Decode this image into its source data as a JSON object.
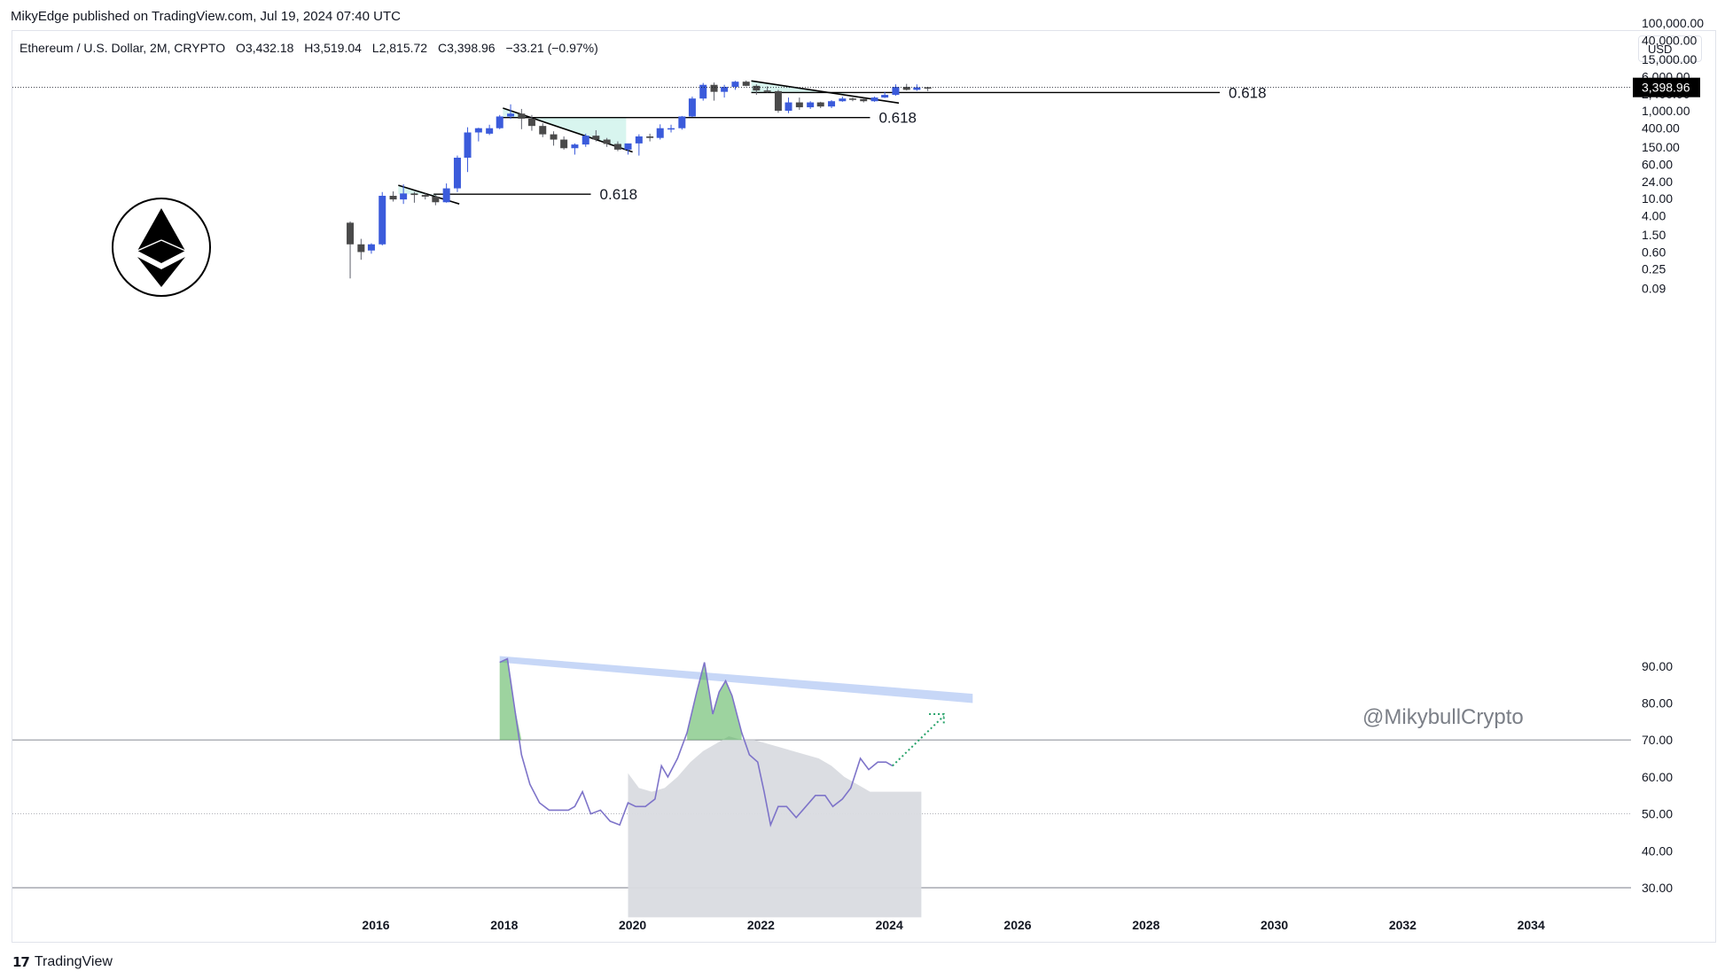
{
  "header": {
    "published": "MikyEdge published on TradingView.com, Jul 19, 2024 07:40 UTC"
  },
  "legend": {
    "symbol": "Ethereum / U.S. Dollar, 2M, CRYPTO",
    "open": "O3,432.18",
    "high": "H3,519.04",
    "low": "L2,815.72",
    "close": "C3,398.96",
    "change": "−33.21 (−0.97%)"
  },
  "currency_button": "USD",
  "footer": {
    "brand": "TradingView",
    "logo_glyph": "17"
  },
  "watermark": "@MikybullCrypto",
  "colors": {
    "up": "#3b5bdb",
    "down": "#4a4a4a",
    "rsi_line": "#7e74c9",
    "trendline": "#000000",
    "resistance_band": "#b9cdf5",
    "ma_area": "#d9dbe0",
    "overbought_fill": "#4caf50",
    "arrow": "#26a269"
  },
  "chart_data": [
    {
      "type": "candlestick",
      "name": "price",
      "scale": "log",
      "y_ticks": [
        "100,000.00",
        "40,000.00",
        "15,000.00",
        "6,000.00",
        "2,400.00",
        "1,000.00",
        "400.00",
        "150.00",
        "60.00",
        "24.00",
        "10.00",
        "4.00",
        "1.50",
        "0.60",
        "0.25",
        "0.09"
      ],
      "last_price_label": "3,398.96",
      "fib_labels": [
        "0.618",
        "0.618",
        "0.618"
      ],
      "candles": [
        {
          "t": 2015.6,
          "o": 2.8,
          "h": 3.0,
          "l": 0.15,
          "c": 0.9
        },
        {
          "t": 2015.77,
          "o": 0.9,
          "h": 1.2,
          "l": 0.4,
          "c": 0.6
        },
        {
          "t": 2015.93,
          "o": 0.65,
          "h": 0.95,
          "l": 0.55,
          "c": 0.9
        },
        {
          "t": 2016.1,
          "o": 0.9,
          "h": 14,
          "l": 0.85,
          "c": 11.5
        },
        {
          "t": 2016.27,
          "o": 11.5,
          "h": 14.5,
          "l": 8.5,
          "c": 9.5
        },
        {
          "t": 2016.43,
          "o": 9.5,
          "h": 21,
          "l": 7.5,
          "c": 13
        },
        {
          "t": 2016.6,
          "o": 13,
          "h": 14,
          "l": 8,
          "c": 12
        },
        {
          "t": 2016.77,
          "o": 12,
          "h": 13,
          "l": 9.5,
          "c": 11
        },
        {
          "t": 2016.93,
          "o": 11,
          "h": 12,
          "l": 7,
          "c": 8.2
        },
        {
          "t": 2017.1,
          "o": 8.2,
          "h": 22,
          "l": 8,
          "c": 17
        },
        {
          "t": 2017.27,
          "o": 17,
          "h": 95,
          "l": 14,
          "c": 85
        },
        {
          "t": 2017.43,
          "o": 85,
          "h": 420,
          "l": 40,
          "c": 320
        },
        {
          "t": 2017.6,
          "o": 320,
          "h": 410,
          "l": 200,
          "c": 400
        },
        {
          "t": 2017.77,
          "o": 300,
          "h": 480,
          "l": 280,
          "c": 400
        },
        {
          "t": 2017.93,
          "o": 400,
          "h": 800,
          "l": 380,
          "c": 740
        },
        {
          "t": 2018.1,
          "o": 740,
          "h": 1400,
          "l": 650,
          "c": 860
        },
        {
          "t": 2018.27,
          "o": 860,
          "h": 1100,
          "l": 380,
          "c": 660
        },
        {
          "t": 2018.43,
          "o": 660,
          "h": 800,
          "l": 350,
          "c": 450
        },
        {
          "t": 2018.6,
          "o": 450,
          "h": 520,
          "l": 250,
          "c": 290
        },
        {
          "t": 2018.77,
          "o": 290,
          "h": 340,
          "l": 160,
          "c": 220
        },
        {
          "t": 2018.93,
          "o": 220,
          "h": 260,
          "l": 130,
          "c": 140
        },
        {
          "t": 2019.1,
          "o": 140,
          "h": 180,
          "l": 100,
          "c": 170
        },
        {
          "t": 2019.27,
          "o": 170,
          "h": 300,
          "l": 150,
          "c": 270
        },
        {
          "t": 2019.43,
          "o": 270,
          "h": 360,
          "l": 200,
          "c": 220
        },
        {
          "t": 2019.6,
          "o": 220,
          "h": 240,
          "l": 150,
          "c": 175
        },
        {
          "t": 2019.77,
          "o": 175,
          "h": 200,
          "l": 120,
          "c": 130
        },
        {
          "t": 2019.93,
          "o": 130,
          "h": 150,
          "l": 100,
          "c": 180
        },
        {
          "t": 2020.1,
          "o": 180,
          "h": 290,
          "l": 95,
          "c": 260
        },
        {
          "t": 2020.27,
          "o": 260,
          "h": 300,
          "l": 200,
          "c": 240
        },
        {
          "t": 2020.43,
          "o": 240,
          "h": 490,
          "l": 220,
          "c": 400
        },
        {
          "t": 2020.6,
          "o": 400,
          "h": 480,
          "l": 320,
          "c": 400
        },
        {
          "t": 2020.77,
          "o": 400,
          "h": 760,
          "l": 370,
          "c": 740
        },
        {
          "t": 2020.93,
          "o": 740,
          "h": 2100,
          "l": 720,
          "c": 1900
        },
        {
          "t": 2021.1,
          "o": 1900,
          "h": 4300,
          "l": 1700,
          "c": 3900
        },
        {
          "t": 2021.27,
          "o": 3900,
          "h": 4400,
          "l": 1700,
          "c": 2700
        },
        {
          "t": 2021.43,
          "o": 2700,
          "h": 3900,
          "l": 2000,
          "c": 3500
        },
        {
          "t": 2021.6,
          "o": 3500,
          "h": 4800,
          "l": 3000,
          "c": 4600
        },
        {
          "t": 2021.77,
          "o": 4600,
          "h": 4900,
          "l": 3600,
          "c": 3700
        },
        {
          "t": 2021.93,
          "o": 3700,
          "h": 4000,
          "l": 2300,
          "c": 2900
        },
        {
          "t": 2022.1,
          "o": 2900,
          "h": 3600,
          "l": 2600,
          "c": 2800
        },
        {
          "t": 2022.27,
          "o": 2800,
          "h": 3000,
          "l": 900,
          "c": 1000
        },
        {
          "t": 2022.43,
          "o": 1000,
          "h": 2000,
          "l": 880,
          "c": 1550
        },
        {
          "t": 2022.6,
          "o": 1550,
          "h": 2000,
          "l": 1050,
          "c": 1200
        },
        {
          "t": 2022.77,
          "o": 1200,
          "h": 1650,
          "l": 1100,
          "c": 1550
        },
        {
          "t": 2022.93,
          "o": 1550,
          "h": 1600,
          "l": 1150,
          "c": 1250
        },
        {
          "t": 2023.1,
          "o": 1250,
          "h": 1750,
          "l": 1150,
          "c": 1650
        },
        {
          "t": 2023.27,
          "o": 1650,
          "h": 2100,
          "l": 1600,
          "c": 1900
        },
        {
          "t": 2023.43,
          "o": 1900,
          "h": 2000,
          "l": 1650,
          "c": 1850
        },
        {
          "t": 2023.6,
          "o": 1850,
          "h": 1950,
          "l": 1550,
          "c": 1650
        },
        {
          "t": 2023.77,
          "o": 1650,
          "h": 2100,
          "l": 1600,
          "c": 2000
        },
        {
          "t": 2023.93,
          "o": 2000,
          "h": 2700,
          "l": 1950,
          "c": 2300
        },
        {
          "t": 2024.1,
          "o": 2300,
          "h": 4000,
          "l": 2200,
          "c": 3500
        },
        {
          "t": 2024.27,
          "o": 3500,
          "h": 4100,
          "l": 2900,
          "c": 3000
        },
        {
          "t": 2024.43,
          "o": 3000,
          "h": 4000,
          "l": 2850,
          "c": 3430
        },
        {
          "t": 2024.6,
          "o": 3432,
          "h": 3519,
          "l": 2815,
          "c": 3399
        }
      ]
    },
    {
      "type": "line",
      "name": "oscillator",
      "y_ticks": [
        "90.00",
        "80.00",
        "70.00",
        "60.00",
        "50.00",
        "40.00",
        "30.00"
      ],
      "levels": [
        70,
        50,
        30
      ],
      "values": [
        [
          2017.93,
          91
        ],
        [
          2018.05,
          92
        ],
        [
          2018.15,
          80
        ],
        [
          2018.27,
          66
        ],
        [
          2018.4,
          58
        ],
        [
          2018.55,
          53
        ],
        [
          2018.7,
          51
        ],
        [
          2018.85,
          51
        ],
        [
          2019.0,
          51
        ],
        [
          2019.1,
          52
        ],
        [
          2019.22,
          56
        ],
        [
          2019.35,
          50
        ],
        [
          2019.5,
          51
        ],
        [
          2019.65,
          48
        ],
        [
          2019.8,
          47
        ],
        [
          2019.93,
          53
        ],
        [
          2020.05,
          52
        ],
        [
          2020.2,
          52
        ],
        [
          2020.35,
          54
        ],
        [
          2020.45,
          63
        ],
        [
          2020.55,
          60
        ],
        [
          2020.7,
          65
        ],
        [
          2020.85,
          72
        ],
        [
          2021.0,
          83
        ],
        [
          2021.12,
          91
        ],
        [
          2021.25,
          77
        ],
        [
          2021.35,
          83
        ],
        [
          2021.45,
          86
        ],
        [
          2021.55,
          82
        ],
        [
          2021.7,
          72
        ],
        [
          2021.82,
          66
        ],
        [
          2021.95,
          64
        ],
        [
          2022.05,
          56
        ],
        [
          2022.15,
          47
        ],
        [
          2022.27,
          52
        ],
        [
          2022.4,
          52
        ],
        [
          2022.55,
          49
        ],
        [
          2022.7,
          52
        ],
        [
          2022.85,
          55
        ],
        [
          2023.0,
          55
        ],
        [
          2023.12,
          52
        ],
        [
          2023.27,
          54
        ],
        [
          2023.4,
          57
        ],
        [
          2023.55,
          65
        ],
        [
          2023.68,
          62
        ],
        [
          2023.82,
          64
        ],
        [
          2023.95,
          64
        ],
        [
          2024.05,
          63
        ]
      ]
    },
    {
      "type": "area",
      "name": "oscillator-average",
      "values": [
        [
          2019.93,
          61
        ],
        [
          2020.1,
          57
        ],
        [
          2020.3,
          56
        ],
        [
          2020.5,
          57
        ],
        [
          2020.7,
          60
        ],
        [
          2020.9,
          64
        ],
        [
          2021.1,
          67
        ],
        [
          2021.3,
          69
        ],
        [
          2021.5,
          71
        ],
        [
          2021.7,
          70
        ],
        [
          2021.9,
          70
        ],
        [
          2022.1,
          69
        ],
        [
          2022.3,
          68
        ],
        [
          2022.5,
          67
        ],
        [
          2022.7,
          66
        ],
        [
          2022.9,
          65
        ],
        [
          2023.1,
          63
        ],
        [
          2023.3,
          60
        ],
        [
          2023.5,
          58
        ],
        [
          2023.7,
          56
        ],
        [
          2024.0,
          56
        ],
        [
          2024.5,
          56
        ]
      ]
    }
  ],
  "x_axis": {
    "ticks": [
      "2016",
      "2018",
      "2020",
      "2022",
      "2024",
      "2026",
      "2028",
      "2030",
      "2032",
      "2034"
    ]
  }
}
